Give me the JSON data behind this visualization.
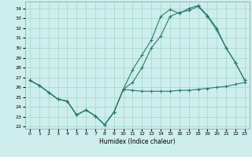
{
  "title": "",
  "xlabel": "Humidex (Indice chaleur)",
  "bg_color": "#cdeeed",
  "grid_color": "#aad8cc",
  "line_color": "#2a7a6a",
  "xlim": [
    -0.5,
    23.5
  ],
  "ylim": [
    21.8,
    34.7
  ],
  "yticks": [
    22,
    23,
    24,
    25,
    26,
    27,
    28,
    29,
    30,
    31,
    32,
    33,
    34
  ],
  "xticks": [
    0,
    1,
    2,
    3,
    4,
    5,
    6,
    7,
    8,
    9,
    10,
    11,
    12,
    13,
    14,
    15,
    16,
    17,
    18,
    19,
    20,
    21,
    22,
    23
  ],
  "line1_x": [
    0,
    1,
    2,
    3,
    4,
    5,
    6,
    7,
    8,
    9,
    10,
    11,
    12,
    13,
    14,
    15,
    16,
    17,
    18,
    19,
    20,
    21,
    22,
    23
  ],
  "line1_y": [
    26.7,
    26.2,
    25.5,
    24.8,
    24.6,
    23.2,
    23.7,
    23.1,
    22.2,
    23.5,
    25.8,
    25.7,
    25.6,
    25.6,
    25.6,
    25.6,
    25.7,
    25.7,
    25.8,
    25.9,
    26.0,
    26.1,
    26.3,
    26.5
  ],
  "line2_x": [
    0,
    1,
    2,
    3,
    4,
    5,
    6,
    7,
    8,
    9,
    10,
    11,
    12,
    13,
    14,
    15,
    16,
    17,
    18,
    19,
    20,
    21,
    22,
    23
  ],
  "line2_y": [
    26.7,
    26.2,
    25.5,
    24.8,
    24.6,
    23.2,
    23.7,
    23.1,
    22.2,
    23.5,
    25.8,
    26.5,
    28.0,
    30.0,
    31.2,
    33.2,
    33.6,
    33.8,
    34.2,
    33.2,
    31.8,
    30.0,
    28.5,
    26.7
  ],
  "line3_x": [
    0,
    1,
    2,
    3,
    4,
    5,
    6,
    7,
    8,
    9,
    10,
    11,
    12,
    13,
    14,
    15,
    16,
    17,
    18,
    19,
    20,
    21,
    22,
    23
  ],
  "line3_y": [
    26.7,
    26.2,
    25.5,
    24.8,
    24.6,
    23.2,
    23.7,
    23.1,
    22.2,
    23.5,
    25.8,
    27.8,
    29.3,
    30.8,
    33.2,
    33.9,
    33.5,
    34.0,
    34.3,
    33.3,
    32.0,
    30.0,
    28.5,
    26.7
  ]
}
